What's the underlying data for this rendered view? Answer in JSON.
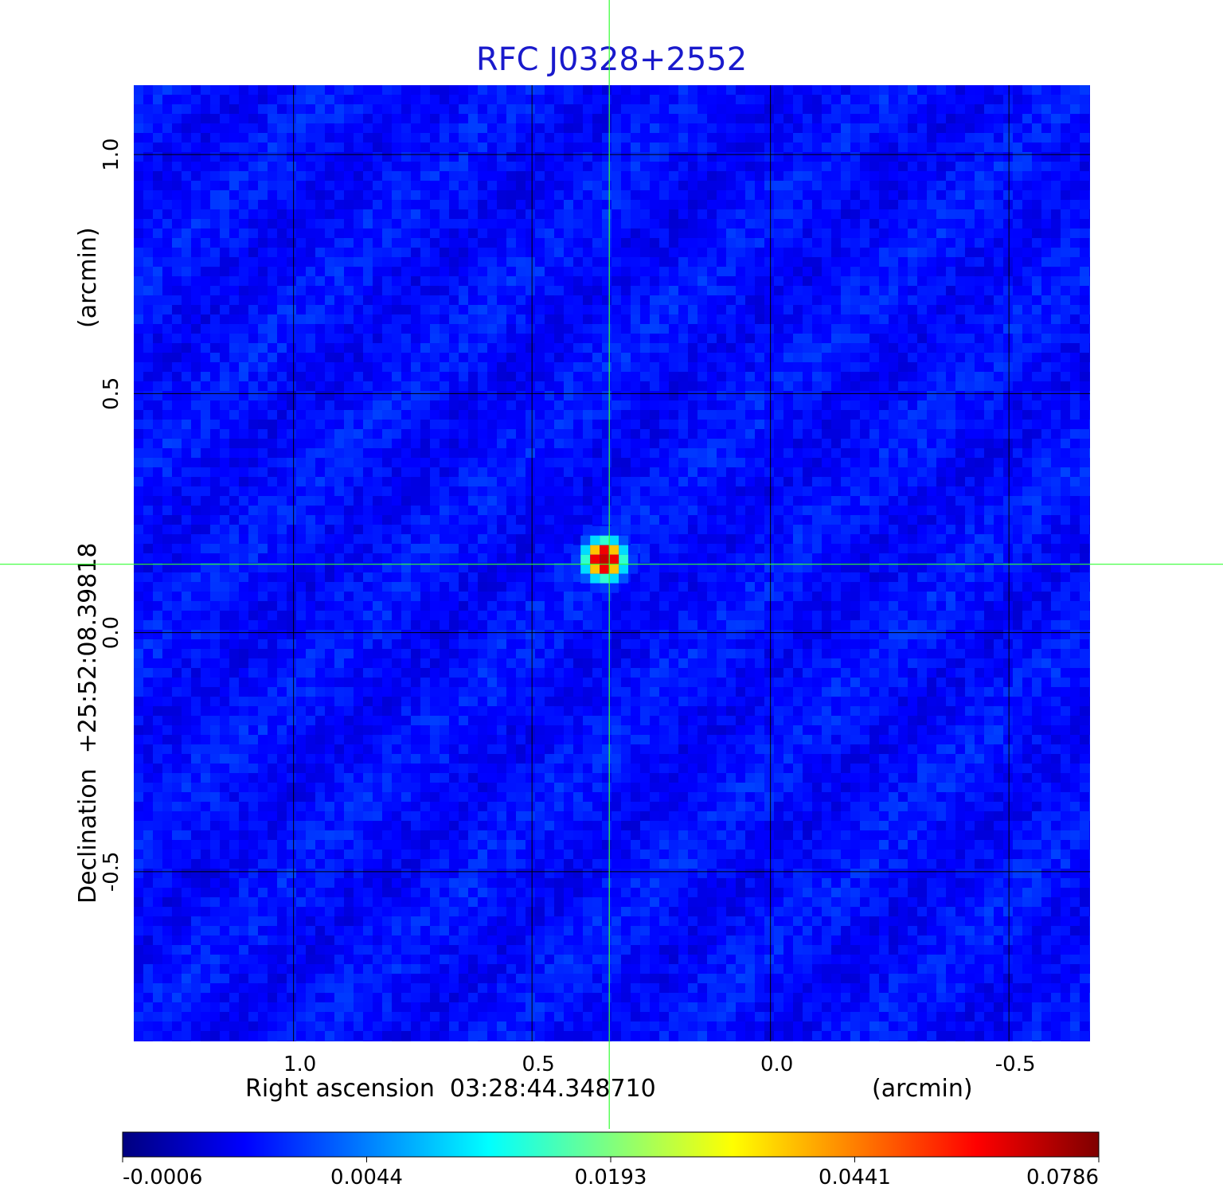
{
  "chart_data": {
    "type": "heatmap",
    "title": "RFC J0328+2552",
    "xlabel": "Right ascension  03:28:44.348710",
    "x_unit": "(arcmin)",
    "ylabel": "Declination  +25:52:08.39818",
    "y_unit": "(arcmin)",
    "x_ticks": [
      1.0,
      0.5,
      0.0,
      -0.5
    ],
    "x_tick_labels": [
      "1.0",
      "0.5",
      "0.0",
      "-0.5"
    ],
    "y_ticks": [
      1.0,
      0.5,
      0.0,
      -0.5
    ],
    "y_tick_labels": [
      "1.0",
      "0.5",
      "0.0",
      "-0.5"
    ],
    "xlim": [
      1.335,
      -0.67
    ],
    "ylim": [
      -0.855,
      1.145
    ],
    "grid": true,
    "crosshair": {
      "x": 0.338,
      "y": 0.143
    },
    "source_peak": {
      "x": 0.338,
      "y": 0.143,
      "value": 0.0786
    },
    "background_level": -0.0006,
    "colorbar": {
      "ticks": [
        -0.0006,
        0.0044,
        0.0193,
        0.0441,
        0.0786
      ],
      "tick_labels": [
        "-0.0006",
        "0.0044",
        "0.0193",
        "0.0441",
        "0.0786"
      ],
      "colormap": "jet",
      "colors": [
        "#00007f",
        "#0000ff",
        "#007fff",
        "#00ffff",
        "#7fff7f",
        "#ffff00",
        "#ff7f00",
        "#ff0000",
        "#7f0000"
      ]
    },
    "colors": {
      "title": "#1a1acc",
      "background_map": "#0a37f0",
      "grid": "#000000",
      "crosshair": "#33ff33"
    }
  }
}
